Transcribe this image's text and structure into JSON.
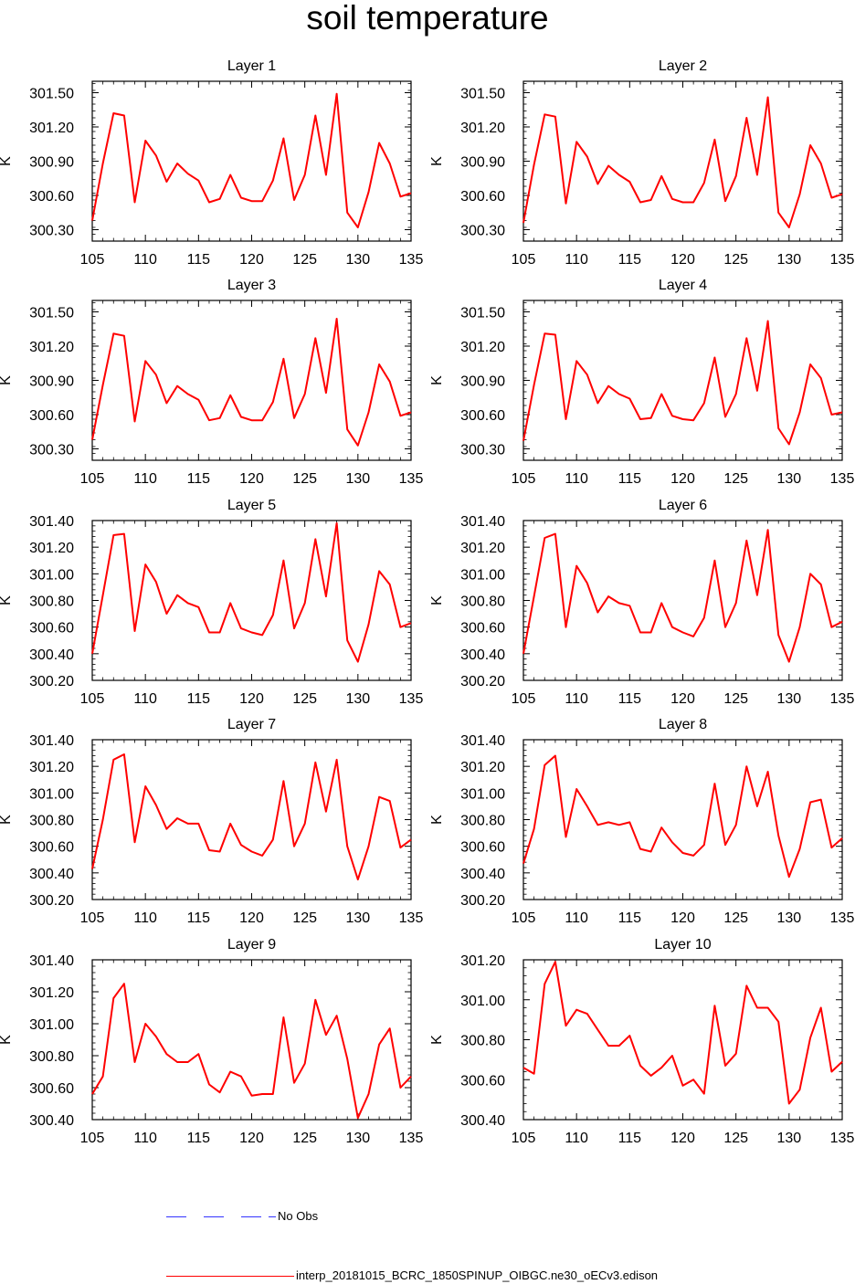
{
  "title": "soil temperature",
  "colors": {
    "model_line": "#ff0000",
    "obs_line": "#3333ff",
    "axis": "#000000"
  },
  "legend": {
    "obs_label": "No Obs",
    "model_label": "interp_20181015_BCRC_1850SPINUP_OIBGC.ne30_oECv3.edison"
  },
  "chart_data": [
    {
      "type": "line",
      "title": "Layer 1",
      "ylabel": "K",
      "xlim": [
        105,
        135
      ],
      "ylim": [
        300.2,
        301.6
      ],
      "xticks": [
        "105",
        "110",
        "115",
        "120",
        "125",
        "130",
        "135"
      ],
      "yticks": [
        "300.30",
        "300.60",
        "300.90",
        "301.20",
        "301.50"
      ],
      "x": [
        105,
        106,
        107,
        108,
        109,
        110,
        111,
        112,
        113,
        114,
        115,
        116,
        117,
        118,
        119,
        120,
        121,
        122,
        123,
        124,
        125,
        126,
        127,
        128,
        129,
        130,
        131,
        132,
        133,
        134,
        135
      ],
      "series": [
        {
          "name": "interp_20181015_BCRC_1850SPINUP_OIBGC.ne30_oECv3.edison",
          "values": [
            300.38,
            300.88,
            301.32,
            301.3,
            300.54,
            301.08,
            300.95,
            300.72,
            300.88,
            300.79,
            300.73,
            300.54,
            300.57,
            300.78,
            300.58,
            300.55,
            300.55,
            300.73,
            301.1,
            300.56,
            300.78,
            301.3,
            300.78,
            301.49,
            300.45,
            300.32,
            300.63,
            301.06,
            300.88,
            300.59,
            300.62
          ]
        }
      ]
    },
    {
      "type": "line",
      "title": "Layer 2",
      "ylabel": "K",
      "xlim": [
        105,
        135
      ],
      "ylim": [
        300.2,
        301.6
      ],
      "xticks": [
        "105",
        "110",
        "115",
        "120",
        "125",
        "130",
        "135"
      ],
      "yticks": [
        "300.30",
        "300.60",
        "300.90",
        "301.20",
        "301.50"
      ],
      "x": [
        105,
        106,
        107,
        108,
        109,
        110,
        111,
        112,
        113,
        114,
        115,
        116,
        117,
        118,
        119,
        120,
        121,
        122,
        123,
        124,
        125,
        126,
        127,
        128,
        129,
        130,
        131,
        132,
        133,
        134,
        135
      ],
      "series": [
        {
          "name": "interp_20181015_BCRC_1850SPINUP_OIBGC.ne30_oECv3.edison",
          "values": [
            300.36,
            300.87,
            301.31,
            301.29,
            300.53,
            301.07,
            300.94,
            300.7,
            300.86,
            300.78,
            300.72,
            300.54,
            300.56,
            300.77,
            300.57,
            300.54,
            300.54,
            300.71,
            301.09,
            300.55,
            300.77,
            301.28,
            300.78,
            301.46,
            300.45,
            300.32,
            300.61,
            301.04,
            300.88,
            300.58,
            300.61
          ]
        }
      ]
    },
    {
      "type": "line",
      "title": "Layer 3",
      "ylabel": "K",
      "xlim": [
        105,
        135
      ],
      "ylim": [
        300.2,
        301.6
      ],
      "xticks": [
        "105",
        "110",
        "115",
        "120",
        "125",
        "130",
        "135"
      ],
      "yticks": [
        "300.30",
        "300.60",
        "300.90",
        "301.20",
        "301.50"
      ],
      "x": [
        105,
        106,
        107,
        108,
        109,
        110,
        111,
        112,
        113,
        114,
        115,
        116,
        117,
        118,
        119,
        120,
        121,
        122,
        123,
        124,
        125,
        126,
        127,
        128,
        129,
        130,
        131,
        132,
        133,
        134,
        135
      ],
      "series": [
        {
          "name": "interp_20181015_BCRC_1850SPINUP_OIBGC.ne30_oECv3.edison",
          "values": [
            300.38,
            300.86,
            301.31,
            301.29,
            300.54,
            301.07,
            300.95,
            300.7,
            300.85,
            300.78,
            300.73,
            300.55,
            300.57,
            300.77,
            300.58,
            300.55,
            300.55,
            300.71,
            301.09,
            300.57,
            300.78,
            301.27,
            300.79,
            301.44,
            300.47,
            300.33,
            300.62,
            301.04,
            300.89,
            300.59,
            300.62
          ]
        }
      ]
    },
    {
      "type": "line",
      "title": "Layer 4",
      "ylabel": "K",
      "xlim": [
        105,
        135
      ],
      "ylim": [
        300.2,
        301.6
      ],
      "xticks": [
        "105",
        "110",
        "115",
        "120",
        "125",
        "130",
        "135"
      ],
      "yticks": [
        "300.30",
        "300.60",
        "300.90",
        "301.20",
        "301.50"
      ],
      "x": [
        105,
        106,
        107,
        108,
        109,
        110,
        111,
        112,
        113,
        114,
        115,
        116,
        117,
        118,
        119,
        120,
        121,
        122,
        123,
        124,
        125,
        126,
        127,
        128,
        129,
        130,
        131,
        132,
        133,
        134,
        135
      ],
      "series": [
        {
          "name": "interp_20181015_BCRC_1850SPINUP_OIBGC.ne30_oECv3.edison",
          "values": [
            300.37,
            300.86,
            301.31,
            301.3,
            300.56,
            301.07,
            300.95,
            300.7,
            300.85,
            300.78,
            300.74,
            300.56,
            300.57,
            300.78,
            300.59,
            300.56,
            300.55,
            300.7,
            301.1,
            300.58,
            300.78,
            301.27,
            300.81,
            301.42,
            300.48,
            300.34,
            300.62,
            301.04,
            300.92,
            300.6,
            300.62
          ]
        }
      ]
    },
    {
      "type": "line",
      "title": "Layer 5",
      "ylabel": "K",
      "xlim": [
        105,
        135
      ],
      "ylim": [
        300.2,
        301.4
      ],
      "xticks": [
        "105",
        "110",
        "115",
        "120",
        "125",
        "130",
        "135"
      ],
      "yticks": [
        "300.20",
        "300.40",
        "300.60",
        "300.80",
        "301.00",
        "301.20",
        "301.40"
      ],
      "x": [
        105,
        106,
        107,
        108,
        109,
        110,
        111,
        112,
        113,
        114,
        115,
        116,
        117,
        118,
        119,
        120,
        121,
        122,
        123,
        124,
        125,
        126,
        127,
        128,
        129,
        130,
        131,
        132,
        133,
        134,
        135
      ],
      "series": [
        {
          "name": "interp_20181015_BCRC_1850SPINUP_OIBGC.ne30_oECv3.edison",
          "values": [
            300.4,
            300.84,
            301.29,
            301.3,
            300.57,
            301.07,
            300.94,
            300.7,
            300.84,
            300.78,
            300.75,
            300.56,
            300.56,
            300.78,
            300.59,
            300.56,
            300.54,
            300.69,
            301.1,
            300.59,
            300.78,
            301.26,
            300.83,
            301.38,
            300.5,
            300.34,
            300.62,
            301.02,
            300.92,
            300.6,
            300.63
          ]
        }
      ]
    },
    {
      "type": "line",
      "title": "Layer 6",
      "ylabel": "K",
      "xlim": [
        105,
        135
      ],
      "ylim": [
        300.2,
        301.4
      ],
      "xticks": [
        "105",
        "110",
        "115",
        "120",
        "125",
        "130",
        "135"
      ],
      "yticks": [
        "300.20",
        "300.40",
        "300.60",
        "300.80",
        "301.00",
        "301.20",
        "301.40"
      ],
      "x": [
        105,
        106,
        107,
        108,
        109,
        110,
        111,
        112,
        113,
        114,
        115,
        116,
        117,
        118,
        119,
        120,
        121,
        122,
        123,
        124,
        125,
        126,
        127,
        128,
        129,
        130,
        131,
        132,
        133,
        134,
        135
      ],
      "series": [
        {
          "name": "interp_20181015_BCRC_1850SPINUP_OIBGC.ne30_oECv3.edison",
          "values": [
            300.4,
            300.83,
            301.27,
            301.3,
            300.6,
            301.06,
            300.93,
            300.71,
            300.83,
            300.78,
            300.76,
            300.56,
            300.56,
            300.78,
            300.6,
            300.56,
            300.53,
            300.67,
            301.1,
            300.6,
            300.78,
            301.25,
            300.84,
            301.33,
            300.54,
            300.34,
            300.6,
            301.0,
            300.92,
            300.6,
            300.64
          ]
        }
      ]
    },
    {
      "type": "line",
      "title": "Layer 7",
      "ylabel": "K",
      "xlim": [
        105,
        135
      ],
      "ylim": [
        300.2,
        301.4
      ],
      "xticks": [
        "105",
        "110",
        "115",
        "120",
        "125",
        "130",
        "135"
      ],
      "yticks": [
        "300.20",
        "300.40",
        "300.60",
        "300.80",
        "301.00",
        "301.20",
        "301.40"
      ],
      "x": [
        105,
        106,
        107,
        108,
        109,
        110,
        111,
        112,
        113,
        114,
        115,
        116,
        117,
        118,
        119,
        120,
        121,
        122,
        123,
        124,
        125,
        126,
        127,
        128,
        129,
        130,
        131,
        132,
        133,
        134,
        135
      ],
      "series": [
        {
          "name": "interp_20181015_BCRC_1850SPINUP_OIBGC.ne30_oECv3.edison",
          "values": [
            300.43,
            300.8,
            301.25,
            301.29,
            300.63,
            301.05,
            300.91,
            300.73,
            300.81,
            300.77,
            300.77,
            300.57,
            300.56,
            300.77,
            300.61,
            300.56,
            300.53,
            300.65,
            301.09,
            300.6,
            300.77,
            301.23,
            300.86,
            301.25,
            300.6,
            300.35,
            300.6,
            300.97,
            300.94,
            300.59,
            300.65
          ]
        }
      ]
    },
    {
      "type": "line",
      "title": "Layer 8",
      "ylabel": "K",
      "xlim": [
        105,
        135
      ],
      "ylim": [
        300.2,
        301.4
      ],
      "xticks": [
        "105",
        "110",
        "115",
        "120",
        "125",
        "130",
        "135"
      ],
      "yticks": [
        "300.20",
        "300.40",
        "300.60",
        "300.80",
        "301.00",
        "301.20",
        "301.40"
      ],
      "x": [
        105,
        106,
        107,
        108,
        109,
        110,
        111,
        112,
        113,
        114,
        115,
        116,
        117,
        118,
        119,
        120,
        121,
        122,
        123,
        124,
        125,
        126,
        127,
        128,
        129,
        130,
        131,
        132,
        133,
        134,
        135
      ],
      "series": [
        {
          "name": "interp_20181015_BCRC_1850SPINUP_OIBGC.ne30_oECv3.edison",
          "values": [
            300.47,
            300.73,
            301.21,
            301.28,
            300.67,
            301.03,
            300.9,
            300.76,
            300.78,
            300.76,
            300.78,
            300.58,
            300.56,
            300.74,
            300.63,
            300.55,
            300.53,
            300.61,
            301.07,
            300.61,
            300.76,
            301.2,
            300.9,
            301.16,
            300.68,
            300.37,
            300.58,
            300.93,
            300.95,
            300.59,
            300.66
          ]
        }
      ]
    },
    {
      "type": "line",
      "title": "Layer 9",
      "ylabel": "K",
      "xlim": [
        105,
        135
      ],
      "ylim": [
        300.4,
        301.4
      ],
      "xticks": [
        "105",
        "110",
        "115",
        "120",
        "125",
        "130",
        "135"
      ],
      "yticks": [
        "300.40",
        "300.60",
        "300.80",
        "301.00",
        "301.20",
        "301.40"
      ],
      "x": [
        105,
        106,
        107,
        108,
        109,
        110,
        111,
        112,
        113,
        114,
        115,
        116,
        117,
        118,
        119,
        120,
        121,
        122,
        123,
        124,
        125,
        126,
        127,
        128,
        129,
        130,
        131,
        132,
        133,
        134,
        135
      ],
      "series": [
        {
          "name": "interp_20181015_BCRC_1850SPINUP_OIBGC.ne30_oECv3.edison",
          "values": [
            300.56,
            300.67,
            301.16,
            301.25,
            300.76,
            301.0,
            300.92,
            300.81,
            300.76,
            300.76,
            300.81,
            300.62,
            300.57,
            300.7,
            300.67,
            300.55,
            300.56,
            300.56,
            301.04,
            300.63,
            300.75,
            301.15,
            300.93,
            301.05,
            300.78,
            300.41,
            300.56,
            300.87,
            300.97,
            300.6,
            300.67
          ]
        }
      ]
    },
    {
      "type": "line",
      "title": "Layer 10",
      "ylabel": "K",
      "xlim": [
        105,
        135
      ],
      "ylim": [
        300.4,
        301.2
      ],
      "xticks": [
        "105",
        "110",
        "115",
        "120",
        "125",
        "130",
        "135"
      ],
      "yticks": [
        "300.40",
        "300.60",
        "300.80",
        "301.00",
        "301.20"
      ],
      "x": [
        105,
        106,
        107,
        108,
        109,
        110,
        111,
        112,
        113,
        114,
        115,
        116,
        117,
        118,
        119,
        120,
        121,
        122,
        123,
        124,
        125,
        126,
        127,
        128,
        129,
        130,
        131,
        132,
        133,
        134,
        135
      ],
      "series": [
        {
          "name": "interp_20181015_BCRC_1850SPINUP_OIBGC.ne30_oECv3.edison",
          "values": [
            300.66,
            300.63,
            301.08,
            301.19,
            300.87,
            300.95,
            300.93,
            300.85,
            300.77,
            300.77,
            300.82,
            300.67,
            300.62,
            300.66,
            300.72,
            300.57,
            300.6,
            300.53,
            300.97,
            300.67,
            300.73,
            301.07,
            300.96,
            300.96,
            300.89,
            300.48,
            300.55,
            300.81,
            300.96,
            300.64,
            300.69
          ]
        }
      ]
    }
  ]
}
